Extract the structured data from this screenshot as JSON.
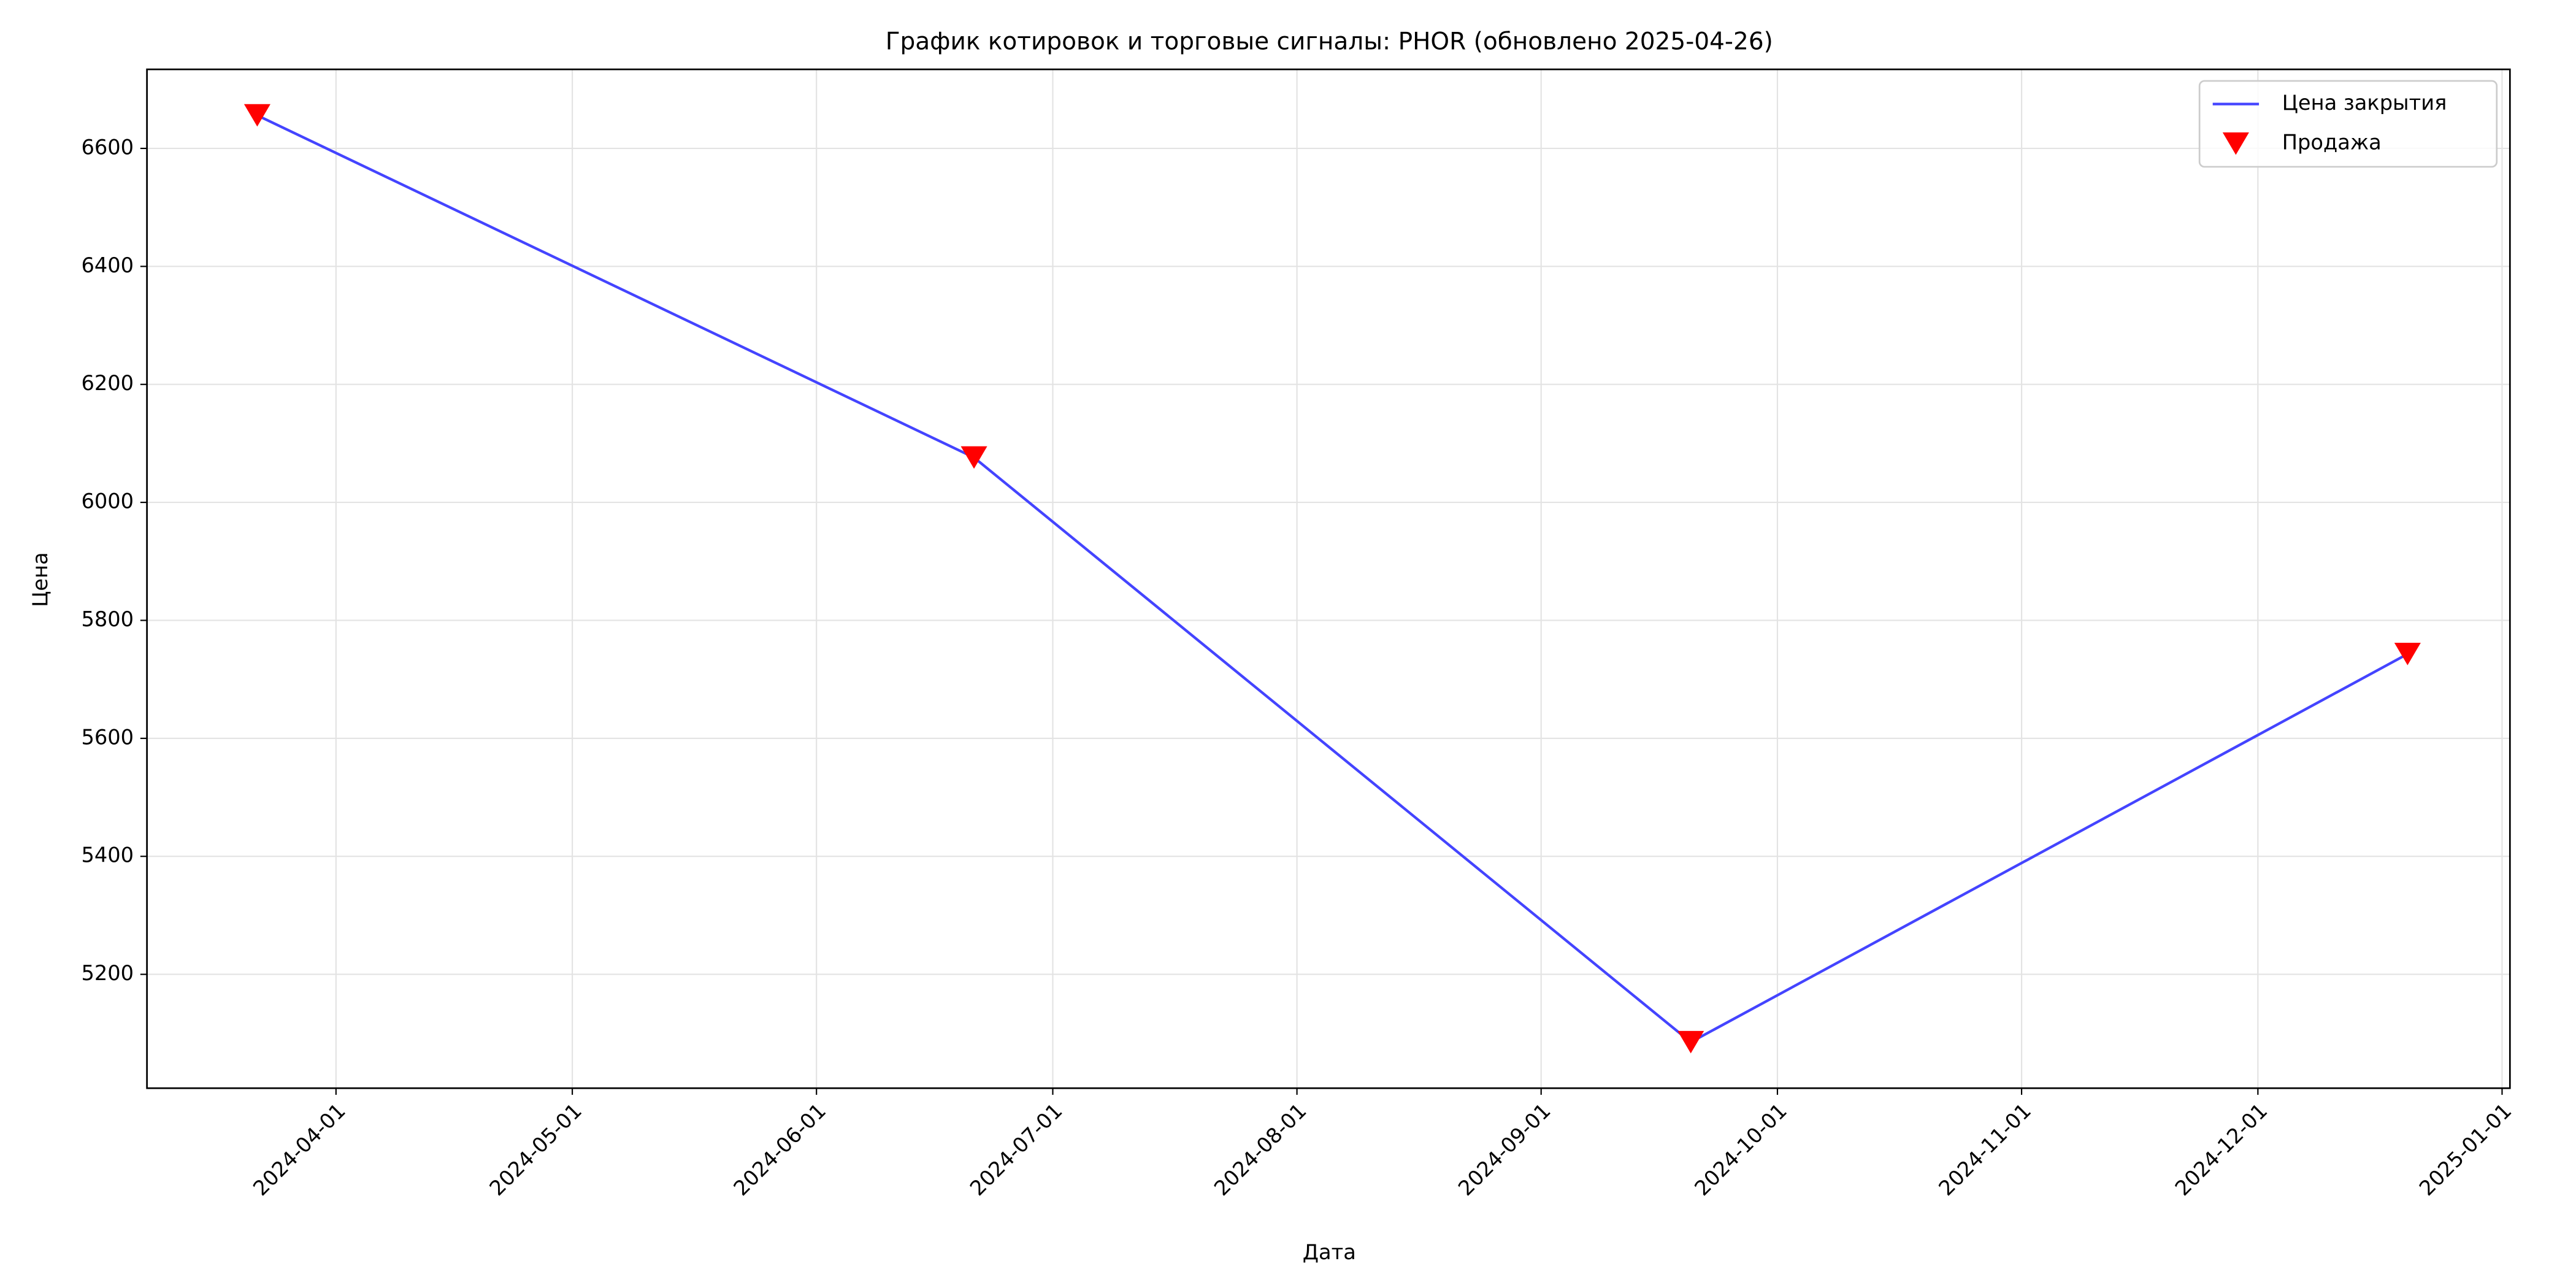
{
  "chart_data": {
    "type": "line",
    "title": "График котировок и торговые сигналы: PHOR (обновлено 2025-04-26)",
    "x_label": "Дата",
    "y_label": "Цена",
    "x": [
      "2024-03-22",
      "2024-06-21",
      "2024-09-20",
      "2024-12-20"
    ],
    "series": [
      {
        "name": "Цена закрытия",
        "type": "line",
        "color": "#4444ff",
        "values": [
          6656,
          6076,
          5085,
          5743
        ]
      },
      {
        "name": "Продажа",
        "type": "scatter",
        "marker": "triangle-down",
        "color": "#ff0000",
        "values": [
          6656,
          6076,
          5085,
          5743
        ]
      }
    ],
    "xlim": [
      "2024-03-08",
      "2025-01-02"
    ],
    "xticks": [
      "2024-04-01",
      "2024-05-01",
      "2024-06-01",
      "2024-07-01",
      "2024-08-01",
      "2024-09-01",
      "2024-10-01",
      "2024-11-01",
      "2024-12-01",
      "2025-01-01"
    ],
    "ylim": [
      5007,
      6734
    ],
    "yticks": [
      5200,
      5400,
      5600,
      5800,
      6000,
      6200,
      6400,
      6600
    ],
    "grid": true,
    "legend": "upper right"
  }
}
